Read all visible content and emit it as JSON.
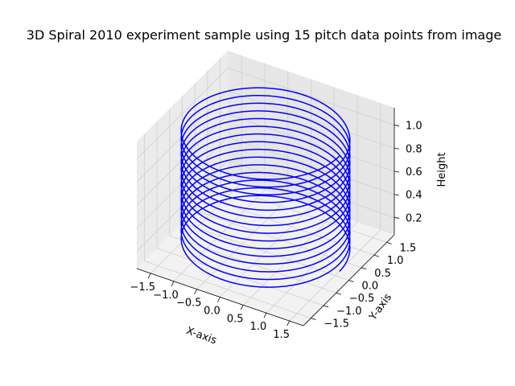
{
  "chart_data": {
    "type": "line",
    "projection": "3d",
    "title": "3D Spiral 2010 experiment sample using 15 pitch data points from image",
    "xlabel": "X-axis",
    "ylabel": "Y-axis",
    "zlabel": "Height",
    "xlim": [
      -1.8,
      1.8
    ],
    "ylim": [
      -1.8,
      1.8
    ],
    "zlim": [
      0.05,
      1.15
    ],
    "x_ticks": [
      "−1.5",
      "−1.0",
      "−0.5",
      "0.0",
      "0.5",
      "1.0",
      "1.5"
    ],
    "y_ticks": [
      "−1.5",
      "−1.0",
      "−0.5",
      "0.0",
      "0.5",
      "1.0",
      "1.5"
    ],
    "z_ticks": [
      "0.2",
      "0.4",
      "0.6",
      "0.8",
      "1.0"
    ],
    "grid": true,
    "series": [
      {
        "color": "#0000ff",
        "radius": 1.6,
        "turns": 15,
        "z_start": 0.1,
        "z_end": 1.1
      }
    ]
  }
}
